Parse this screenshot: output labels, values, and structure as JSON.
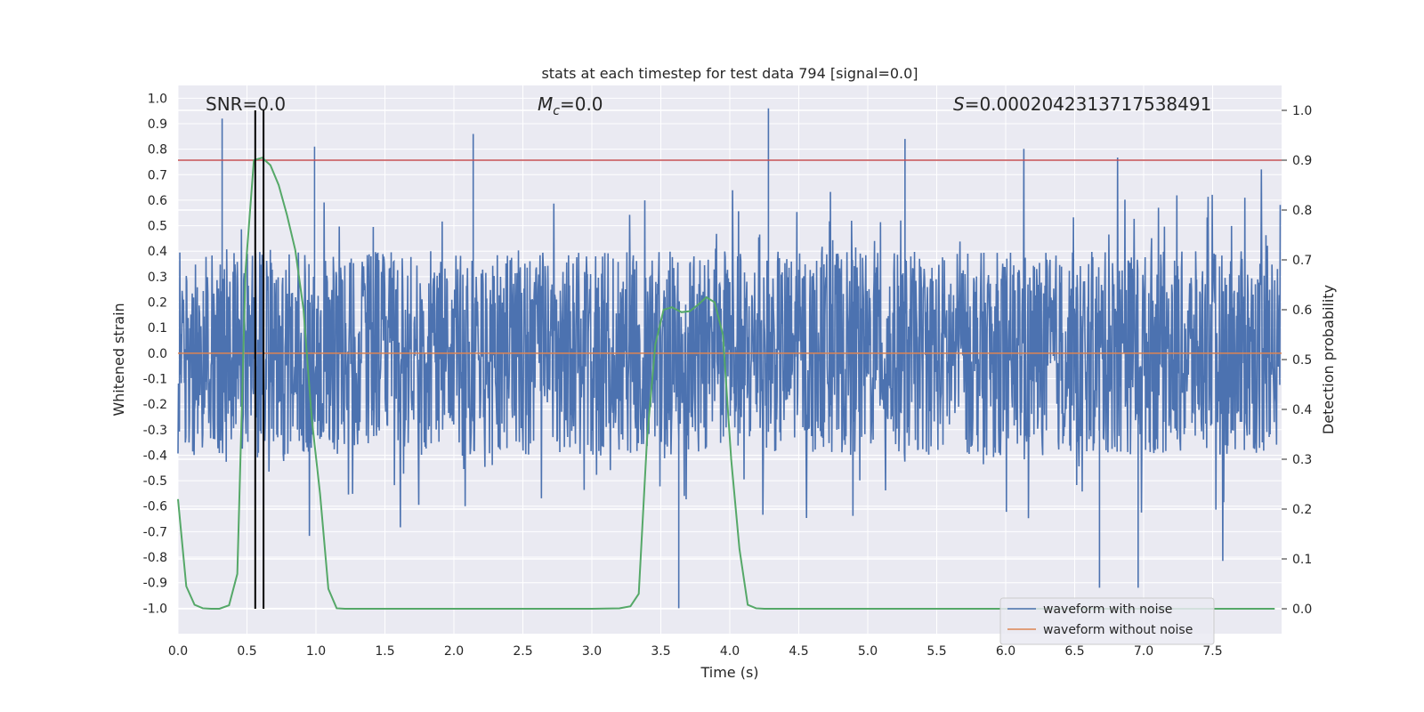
{
  "chart_data": {
    "type": "line",
    "title": "stats at each timestep for test data 794 [signal=0.0]",
    "xlabel": "Time (s)",
    "ylabel": "Whitened strain",
    "ylabel_right": "Detection probability",
    "xlim": [
      0.0,
      8.0
    ],
    "ylim": [
      -1.1,
      1.05
    ],
    "ylim_right": [
      -0.05,
      1.05
    ],
    "x_ticks": [
      "0.0",
      "0.5",
      "1.0",
      "1.5",
      "2.0",
      "2.5",
      "3.0",
      "3.5",
      "4.0",
      "4.5",
      "5.0",
      "5.5",
      "6.0",
      "6.5",
      "7.0",
      "7.5"
    ],
    "y_ticks": [
      "1.0",
      "0.9",
      "0.8",
      "0.7",
      "0.6",
      "0.5",
      "0.4",
      "0.3",
      "0.2",
      "0.1",
      "0.0",
      "-0.1",
      "-0.2",
      "-0.3",
      "-0.4",
      "-0.5",
      "-0.6",
      "-0.7",
      "-0.8",
      "-0.9",
      "-1.0"
    ],
    "y_ticks_right": [
      "1.0",
      "0.9",
      "0.8",
      "0.7",
      "0.6",
      "0.5",
      "0.4",
      "0.3",
      "0.2",
      "0.1",
      "0.0"
    ],
    "grid": true,
    "legend_position": "bottom-right",
    "annotations": {
      "snr": "SNR=0.0",
      "mc_symbol": "M",
      "mc_sub": "c",
      "mc_value": "=0.0",
      "s_symbol": "S",
      "s_value": "=0.0002042313717538491"
    },
    "series": [
      {
        "name": "waveform with noise",
        "color": "#4c72b0",
        "style": "noise",
        "typical_range": [
          -0.4,
          0.4
        ],
        "notable_peaks": [
          [
            0.32,
            0.92
          ],
          [
            0.99,
            0.81
          ],
          [
            2.14,
            0.86
          ],
          [
            4.28,
            0.96
          ],
          [
            5.27,
            0.84
          ],
          [
            3.63,
            -1.0
          ],
          [
            6.68,
            -0.92
          ],
          [
            6.96,
            -0.92
          ]
        ]
      },
      {
        "name": "waveform without noise",
        "color": "#dd8452",
        "values_constant": 0.0
      },
      {
        "name": "",
        "color": "#55a868",
        "axis": "right",
        "x": [
          0.0,
          0.06,
          0.12,
          0.18,
          0.24,
          0.3,
          0.37,
          0.43,
          0.49,
          0.55,
          0.61,
          0.67,
          0.73,
          0.79,
          0.85,
          0.91,
          0.97,
          1.03,
          1.09,
          1.15,
          1.21,
          1.5,
          2.0,
          2.5,
          3.0,
          3.2,
          3.28,
          3.34,
          3.4,
          3.46,
          3.52,
          3.58,
          3.65,
          3.71,
          3.77,
          3.83,
          3.89,
          3.95,
          4.01,
          4.07,
          4.13,
          4.19,
          4.25,
          4.31,
          5.0,
          6.0,
          7.0,
          7.95
        ],
        "values": [
          0.22,
          0.045,
          0.008,
          0.001,
          0.0,
          0.0,
          0.007,
          0.07,
          0.68,
          0.9,
          0.905,
          0.89,
          0.85,
          0.79,
          0.72,
          0.6,
          0.38,
          0.23,
          0.04,
          0.001,
          0.0,
          0.0,
          0.0,
          0.0,
          0.0,
          0.001,
          0.005,
          0.03,
          0.34,
          0.53,
          0.6,
          0.605,
          0.595,
          0.597,
          0.61,
          0.625,
          0.615,
          0.55,
          0.3,
          0.12,
          0.008,
          0.001,
          0.0,
          0.0,
          0.0,
          0.0,
          0.0,
          0.0
        ]
      }
    ],
    "hlines": [
      {
        "axis": "right",
        "y": 0.9,
        "color": "#c44e52"
      }
    ],
    "vlines": [
      {
        "x": 0.56,
        "color": "#000000"
      },
      {
        "x": 0.62,
        "color": "#000000"
      }
    ]
  }
}
